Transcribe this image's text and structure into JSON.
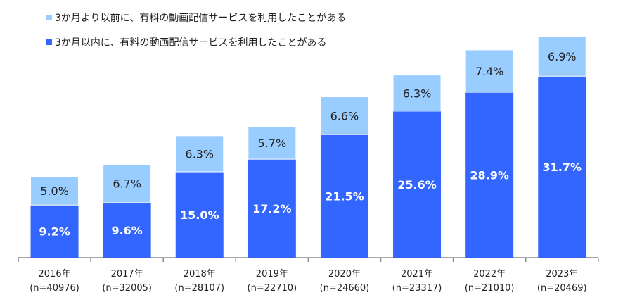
{
  "chart_data": {
    "type": "bar",
    "stacked": true,
    "categories": [
      "2016年",
      "2017年",
      "2018年",
      "2019年",
      "2020年",
      "2021年",
      "2022年",
      "2023年"
    ],
    "category_sublabels": [
      "(n=40976)",
      "(n=32005)",
      "(n=28107)",
      "(n=22710)",
      "(n=24660)",
      "(n=23317)",
      "(n=21010)",
      "(n=20469)"
    ],
    "series": [
      {
        "name": "3か月以内に、有料の動画配信サービスを利用したことがある",
        "color": "#3366FF",
        "values": [
          9.2,
          9.6,
          15.0,
          17.2,
          21.5,
          25.6,
          28.9,
          31.7
        ],
        "labels": [
          "9.2%",
          "9.6%",
          "15.0%",
          "17.2%",
          "21.5%",
          "25.6%",
          "28.9%",
          "31.7%"
        ]
      },
      {
        "name": "3か月より以前に、有料の動画配信サービスを利用したことがある",
        "color": "#99CCFF",
        "values": [
          5.0,
          6.7,
          6.3,
          5.7,
          6.6,
          6.3,
          7.4,
          6.9
        ],
        "labels": [
          "5.0%",
          "6.7%",
          "6.3%",
          "5.7%",
          "6.6%",
          "6.3%",
          "7.4%",
          "6.9%"
        ]
      }
    ],
    "legend_order": [
      1,
      0
    ],
    "legend_position": "top-left",
    "ylim": [
      0,
      40
    ],
    "grid": false,
    "value_unit": "%"
  }
}
